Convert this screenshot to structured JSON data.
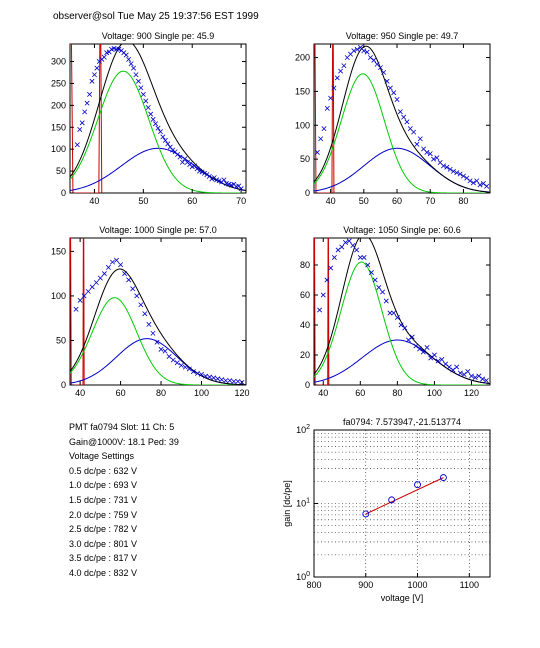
{
  "header": {
    "text": "observer@sol  Tue May 25 19:37:56 EST 1999"
  },
  "info": {
    "lines": [
      "PMT fa0794 Slot: 11 Ch: 5",
      "Gain@1000V: 18.1 Ped: 39",
      "Voltage Settings",
      "0.5 dc/pe : 632 V",
      "1.0 dc/pe : 693 V",
      "1.5 dc/pe : 731 V",
      "2.0 dc/pe : 759 V",
      "2.5 dc/pe : 782 V",
      "3.0 dc/pe : 801 V",
      "3.5 dc/pe : 817 V",
      "4.0 dc/pe : 832 V"
    ]
  },
  "colors": {
    "data_points": "#0000cc",
    "total_fit": "#000000",
    "single_pe_fit": "#00cc00",
    "double_pe_fit": "#0000cc",
    "pedestal": "#cc0000",
    "gain_fit": "#cc0000",
    "gain_points": "#0000cc"
  },
  "chart_data": [
    {
      "type": "scatter",
      "title": "Voltage: 900 Single pe: 45.9",
      "xlim": [
        35,
        71
      ],
      "ylim": [
        0,
        340
      ],
      "xticks": [
        40,
        50,
        60,
        70
      ],
      "yticks": [
        0,
        50,
        100,
        150,
        200,
        250,
        300
      ],
      "pedestal": {
        "start": 34.5,
        "end": 41.5,
        "height": 340
      },
      "fit": {
        "single": {
          "mean": 45.9,
          "amplitude": 278,
          "sigma": 5.2
        },
        "double": {
          "mean": 53.0,
          "amplitude": 102,
          "sigma": 7.5
        },
        "start": 35.0
      },
      "series": [
        {
          "x": [
            36.5,
            37,
            37.5,
            38,
            38.5,
            39,
            39.5,
            40,
            40.5,
            41,
            41.5,
            42,
            42.5,
            43,
            43.5,
            44,
            44.5,
            45,
            45.5,
            46,
            46.5,
            47,
            47.5,
            48,
            48.5,
            49,
            49.5,
            50,
            50.5,
            51,
            51.5,
            52,
            52.5,
            53,
            53.5,
            54,
            54.5,
            55,
            55.5,
            56,
            56.5,
            57,
            57.5,
            58,
            58.5,
            59,
            59.5,
            60,
            60.5,
            61,
            61.5,
            62,
            62.5,
            63,
            63.5,
            64,
            64.5,
            65,
            65.5,
            66,
            66.5,
            67,
            67.5,
            68,
            68.5,
            69,
            69.5,
            70
          ],
          "y": [
            110,
            145,
            160,
            185,
            205,
            225,
            255,
            270,
            285,
            300,
            305,
            310,
            320,
            322,
            328,
            330,
            328,
            328,
            325,
            320,
            315,
            305,
            295,
            285,
            270,
            255,
            240,
            225,
            210,
            195,
            180,
            168,
            158,
            148,
            140,
            128,
            120,
            112,
            105,
            98,
            94,
            88,
            82,
            70,
            78,
            70,
            65,
            60,
            62,
            55,
            50,
            48,
            45,
            42,
            38,
            32,
            35,
            30,
            28,
            25,
            30,
            22,
            20,
            18,
            20,
            15,
            16,
            10
          ]
        }
      ]
    },
    {
      "type": "scatter",
      "title": "Voltage: 950 Single pe: 49.7",
      "xlim": [
        35,
        88
      ],
      "ylim": [
        0,
        220
      ],
      "xticks": [
        40,
        50,
        60,
        70,
        80
      ],
      "yticks": [
        0,
        50,
        100,
        150,
        200
      ],
      "pedestal": {
        "start": 34.5,
        "end": 41.0,
        "height": 220
      },
      "fit": {
        "single": {
          "mean": 49.7,
          "amplitude": 176,
          "sigma": 6.5
        },
        "double": {
          "mean": 60.0,
          "amplitude": 66,
          "sigma": 10.0
        },
        "start": 35.0
      },
      "series": [
        {
          "x": [
            36,
            37,
            38,
            39,
            40,
            41,
            42,
            43,
            44,
            45,
            46,
            47,
            48,
            49,
            50,
            51,
            52,
            53,
            54,
            55,
            56,
            57,
            58,
            59,
            60,
            61,
            62,
            63,
            64,
            65,
            66,
            67,
            68,
            69,
            70,
            71,
            72,
            73,
            74,
            75,
            76,
            77,
            78,
            79,
            80,
            81,
            82,
            83,
            84,
            85,
            86,
            87
          ],
          "y": [
            60,
            80,
            95,
            125,
            140,
            155,
            170,
            180,
            188,
            200,
            205,
            210,
            212,
            215,
            210,
            208,
            200,
            196,
            190,
            185,
            178,
            165,
            155,
            148,
            138,
            120,
            112,
            105,
            95,
            90,
            72,
            80,
            65,
            60,
            58,
            50,
            52,
            45,
            40,
            38,
            35,
            32,
            30,
            28,
            25,
            22,
            18,
            15,
            18,
            12,
            14,
            10
          ]
        }
      ]
    },
    {
      "type": "scatter",
      "title": "Voltage: 1000 Single pe: 57.0",
      "xlim": [
        35,
        122
      ],
      "ylim": [
        0,
        165
      ],
      "xticks": [
        40,
        60,
        80,
        100,
        120
      ],
      "yticks": [
        0,
        50,
        100,
        150
      ],
      "pedestal": {
        "start": 34.5,
        "end": 42.0,
        "height": 165
      },
      "fit": {
        "single": {
          "mean": 57.0,
          "amplitude": 98,
          "sigma": 11.0
        },
        "double": {
          "mean": 73.0,
          "amplitude": 52,
          "sigma": 15.0
        },
        "start": 35.0
      },
      "series": [
        {
          "x": [
            38,
            40,
            42,
            44,
            46,
            48,
            50,
            52,
            54,
            56,
            58,
            60,
            62,
            64,
            66,
            68,
            70,
            72,
            74,
            76,
            78,
            80,
            82,
            84,
            86,
            88,
            90,
            92,
            94,
            96,
            98,
            100,
            102,
            104,
            106,
            108,
            110,
            112,
            114,
            116,
            118,
            120
          ],
          "y": [
            85,
            95,
            100,
            105,
            110,
            115,
            120,
            125,
            132,
            138,
            140,
            135,
            125,
            118,
            108,
            100,
            90,
            80,
            68,
            58,
            48,
            40,
            38,
            32,
            28,
            25,
            22,
            20,
            18,
            15,
            13,
            12,
            10,
            9,
            8,
            7,
            6,
            5,
            5,
            4,
            4,
            3
          ]
        }
      ]
    },
    {
      "type": "scatter",
      "title": "Voltage: 1050 Single pe: 60.6",
      "xlim": [
        35,
        130
      ],
      "ylim": [
        0,
        98
      ],
      "xticks": [
        40,
        60,
        80,
        100,
        120
      ],
      "yticks": [
        0,
        20,
        40,
        60,
        80
      ],
      "pedestal": {
        "start": 34.5,
        "end": 43.0,
        "height": 98
      },
      "fit": {
        "single": {
          "mean": 60.6,
          "amplitude": 82,
          "sigma": 11.0
        },
        "double": {
          "mean": 80.0,
          "amplitude": 30,
          "sigma": 19.0
        },
        "start": 35.0
      },
      "series": [
        {
          "x": [
            38,
            40,
            42,
            44,
            46,
            48,
            50,
            52,
            54,
            56,
            58,
            60,
            62,
            64,
            66,
            68,
            70,
            72,
            74,
            76,
            78,
            80,
            82,
            84,
            86,
            88,
            90,
            92,
            94,
            96,
            98,
            100,
            102,
            104,
            106,
            108,
            110,
            112,
            114,
            116,
            118,
            120,
            122,
            124,
            126,
            128
          ],
          "y": [
            50,
            60,
            70,
            78,
            85,
            90,
            92,
            95,
            96,
            93,
            90,
            85,
            85,
            80,
            75,
            70,
            65,
            62,
            56,
            48,
            48,
            45,
            40,
            38,
            30,
            32,
            26,
            24,
            22,
            25,
            18,
            20,
            16,
            17,
            14,
            12,
            10,
            12,
            8,
            7,
            9,
            6,
            5,
            6,
            4,
            3
          ]
        }
      ]
    },
    {
      "type": "scatter",
      "title": "fa0794: 7.573947,-21.513774",
      "xlabel": "voltage [V]",
      "ylabel": "gain [dc/pe]",
      "log_y": true,
      "grid": true,
      "xlim": [
        800,
        1140
      ],
      "ylim": [
        1,
        100
      ],
      "xticks": [
        800,
        900,
        1000,
        1100
      ],
      "yticks": [
        1,
        10,
        100
      ],
      "ytick_labels": [
        "10^0",
        "10^1",
        "10^2"
      ],
      "fit_line": {
        "x": [
          900,
          1050
        ]
      },
      "series": [
        {
          "x": [
            900,
            950,
            1000,
            1050
          ],
          "y": [
            7.2,
            11.2,
            18.0,
            22.5
          ]
        }
      ]
    }
  ]
}
